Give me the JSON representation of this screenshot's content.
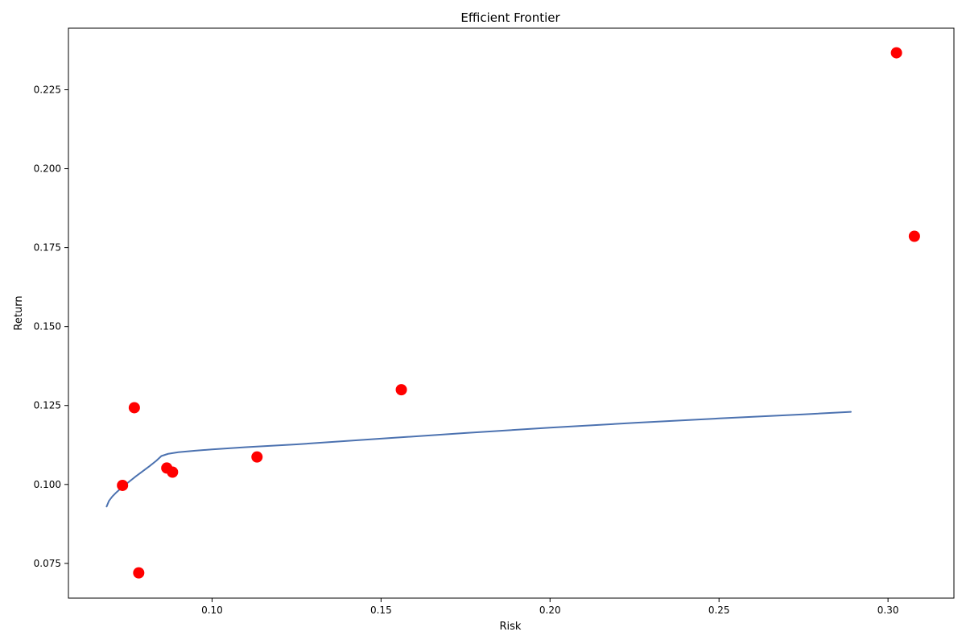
{
  "chart_data": {
    "type": "scatter",
    "title": "Efficient Frontier",
    "xlabel": "Risk",
    "ylabel": "Return",
    "xlim": [
      0.0575,
      0.3195
    ],
    "ylim": [
      0.064,
      0.2445
    ],
    "grid": false,
    "x_ticks": [
      "0.10",
      "0.15",
      "0.20",
      "0.25",
      "0.30"
    ],
    "y_ticks": [
      "0.075",
      "0.100",
      "0.125",
      "0.150",
      "0.175",
      "0.200",
      "0.225"
    ],
    "colors": {
      "frontier": "#4c72b0",
      "assets": "#ff0000"
    },
    "series": [
      {
        "kind": "line",
        "x": [
          0.0688,
          0.0695,
          0.0705,
          0.0718,
          0.0735,
          0.0755,
          0.0775,
          0.0795,
          0.0815,
          0.0835,
          0.085,
          0.087,
          0.09,
          0.095,
          0.1,
          0.11,
          0.125,
          0.15,
          0.175,
          0.2,
          0.225,
          0.25,
          0.275,
          0.289
        ],
        "y": [
          0.093,
          0.0948,
          0.0962,
          0.0976,
          0.0992,
          0.1009,
          0.1026,
          0.1042,
          0.1058,
          0.1075,
          0.109,
          0.1097,
          0.1102,
          0.1107,
          0.1111,
          0.1118,
          0.1127,
          0.1145,
          0.1163,
          0.118,
          0.1195,
          0.1209,
          0.1222,
          0.123
        ]
      },
      {
        "kind": "scatter",
        "points": [
          {
            "x": 0.0735,
            "y": 0.0997
          },
          {
            "x": 0.077,
            "y": 0.1243
          },
          {
            "x": 0.0783,
            "y": 0.072
          },
          {
            "x": 0.0866,
            "y": 0.1052
          },
          {
            "x": 0.0883,
            "y": 0.1039
          },
          {
            "x": 0.1133,
            "y": 0.1087
          },
          {
            "x": 0.156,
            "y": 0.13
          },
          {
            "x": 0.3025,
            "y": 0.2367
          },
          {
            "x": 0.3078,
            "y": 0.1786
          }
        ]
      }
    ]
  }
}
